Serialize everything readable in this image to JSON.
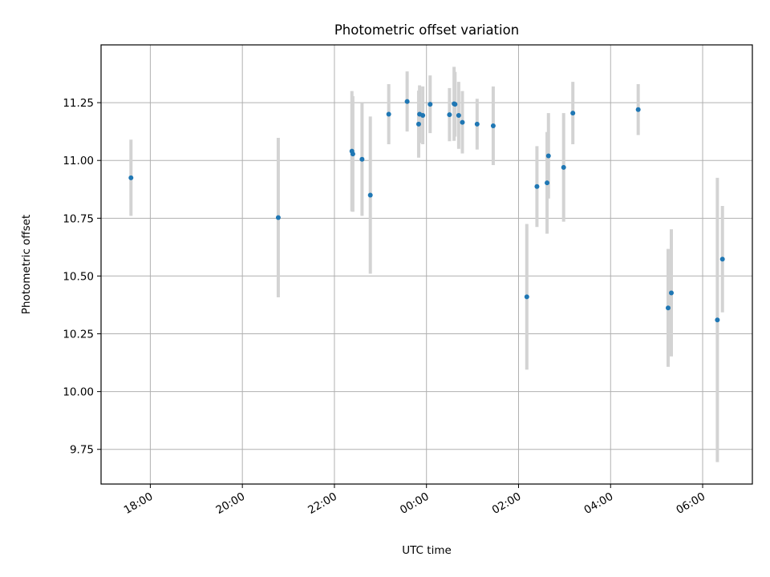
{
  "chart_data": {
    "type": "scatter",
    "title": "Photometric offset variation",
    "xlabel": "UTC time",
    "ylabel": "Photometric offset",
    "grid": true,
    "legend": "none",
    "x_tick_labels": [
      "18:00",
      "20:00",
      "22:00",
      "00:00",
      "02:00",
      "04:00",
      "06:00"
    ],
    "x_tick_values": [
      18.0,
      20.0,
      22.0,
      24.0,
      26.0,
      28.0,
      30.0
    ],
    "x_unit_note": "hours since 00:00 of first day",
    "xlim": [
      16.93,
      31.08
    ],
    "y_tick_labels": [
      "9.75",
      "10.00",
      "10.25",
      "10.50",
      "10.75",
      "11.00",
      "11.25"
    ],
    "y_tick_values": [
      9.75,
      10.0,
      10.25,
      10.5,
      10.75,
      11.0,
      11.25
    ],
    "ylim": [
      9.6,
      11.5
    ],
    "colors": {
      "point": "#1f77b4",
      "errorbar": "#d3d3d3",
      "grid": "#b0b0b0"
    },
    "points": [
      {
        "x": 17.58,
        "y": 10.925,
        "yerr": 0.165
      },
      {
        "x": 20.78,
        "y": 10.753,
        "yerr": 0.345
      },
      {
        "x": 22.38,
        "y": 11.04,
        "yerr": 0.26
      },
      {
        "x": 22.4,
        "y": 11.028,
        "yerr": 0.25
      },
      {
        "x": 22.6,
        "y": 11.005,
        "yerr": 0.245
      },
      {
        "x": 22.78,
        "y": 10.85,
        "yerr": 0.34
      },
      {
        "x": 23.18,
        "y": 11.2,
        "yerr": 0.13
      },
      {
        "x": 23.58,
        "y": 11.255,
        "yerr": 0.13
      },
      {
        "x": 23.85,
        "y": 11.2,
        "yerr": 0.125
      },
      {
        "x": 23.83,
        "y": 11.157,
        "yerr": 0.145
      },
      {
        "x": 23.92,
        "y": 11.195,
        "yerr": 0.125
      },
      {
        "x": 24.08,
        "y": 11.243,
        "yerr": 0.125
      },
      {
        "x": 24.5,
        "y": 11.198,
        "yerr": 0.115
      },
      {
        "x": 24.6,
        "y": 11.245,
        "yerr": 0.16
      },
      {
        "x": 24.62,
        "y": 11.243,
        "yerr": 0.14
      },
      {
        "x": 24.7,
        "y": 11.195,
        "yerr": 0.145
      },
      {
        "x": 24.78,
        "y": 11.165,
        "yerr": 0.135
      },
      {
        "x": 25.1,
        "y": 11.157,
        "yerr": 0.11
      },
      {
        "x": 25.45,
        "y": 11.15,
        "yerr": 0.17
      },
      {
        "x": 26.18,
        "y": 10.41,
        "yerr": 0.315
      },
      {
        "x": 26.4,
        "y": 10.887,
        "yerr": 0.175
      },
      {
        "x": 26.62,
        "y": 10.903,
        "yerr": 0.22
      },
      {
        "x": 26.65,
        "y": 11.02,
        "yerr": 0.185
      },
      {
        "x": 26.98,
        "y": 10.97,
        "yerr": 0.235
      },
      {
        "x": 27.18,
        "y": 11.205,
        "yerr": 0.135
      },
      {
        "x": 28.6,
        "y": 11.22,
        "yerr": 0.11
      },
      {
        "x": 29.25,
        "y": 10.362,
        "yerr": 0.255
      },
      {
        "x": 29.32,
        "y": 10.427,
        "yerr": 0.275
      },
      {
        "x": 30.32,
        "y": 10.31,
        "yerr": 0.615
      },
      {
        "x": 30.43,
        "y": 10.573,
        "yerr": 0.23
      }
    ]
  }
}
